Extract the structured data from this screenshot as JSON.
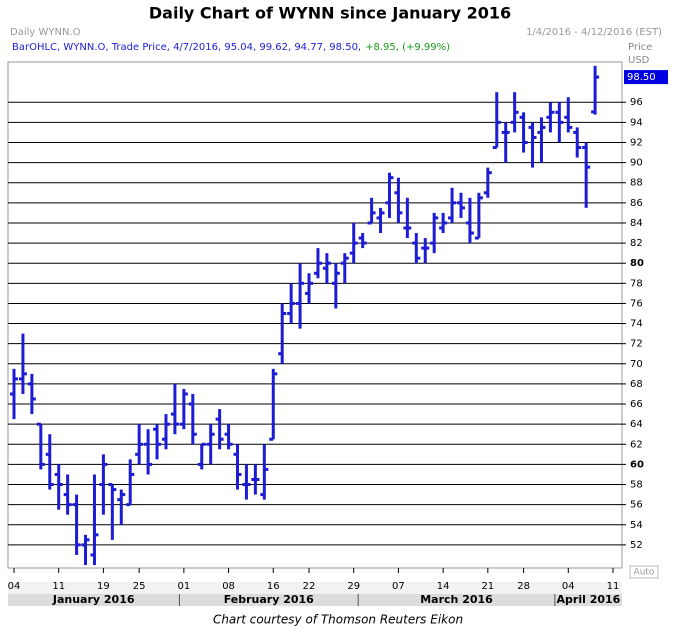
{
  "chart_data": {
    "type": "ohlc",
    "title": "Daily Chart of WYNN since January 2016",
    "instrument_label": "Daily WYNN.O",
    "date_range": "1/4/2016 - 4/12/2016 (EST)",
    "header_text": "BarOHLC, WYNN.O, Trade Price, 4/7/2016, 95.04, 99.62, 94.77, 98.50,",
    "header_change": "+8.95, (+9.99%)",
    "price_label": "Price",
    "currency_label": "USD",
    "last_price_label": "98.50",
    "scale_mode": "Auto",
    "months": [
      "January 2016",
      "February 2016",
      "March 2016",
      "April 2016"
    ],
    "caption": "Chart courtesy of Thomson Reuters Eikon",
    "color": "#1c1cd6",
    "categories": [
      "04",
      null,
      null,
      null,
      null,
      "11",
      null,
      null,
      null,
      null,
      "19",
      null,
      null,
      null,
      "25",
      null,
      null,
      null,
      null,
      "01",
      null,
      null,
      null,
      null,
      "08",
      null,
      null,
      null,
      null,
      "16",
      null,
      null,
      null,
      "22",
      null,
      null,
      null,
      null,
      "29",
      null,
      null,
      null,
      null,
      "07",
      null,
      null,
      null,
      null,
      "14",
      null,
      null,
      null,
      null,
      "21",
      null,
      null,
      null,
      "28",
      null,
      null,
      null,
      null,
      "04",
      null,
      null,
      null,
      null,
      "11"
    ],
    "open": [
      67,
      68.5,
      68,
      64,
      61,
      59,
      57,
      56,
      52,
      51,
      58,
      58,
      56.5,
      56,
      61,
      62,
      63.5,
      62.5,
      65,
      64,
      66,
      60,
      62,
      64.5,
      63,
      61,
      58,
      58.5,
      57,
      62.5,
      71,
      75,
      76,
      77,
      79,
      79.5,
      78,
      80,
      81,
      82.5,
      84,
      84.5,
      86,
      87,
      83.5,
      82,
      81.5,
      82,
      83.5,
      84.5,
      86,
      84,
      82.5,
      87,
      91.5,
      93,
      94,
      94.5,
      93.5,
      93,
      94.5,
      95,
      94.5,
      93,
      91.5,
      95.04,
      null,
      null
    ],
    "high": [
      69.5,
      73,
      69,
      64,
      63,
      60,
      59,
      57,
      53,
      59,
      61,
      58,
      57.5,
      60.5,
      64,
      63.5,
      64,
      65,
      68,
      67.5,
      67,
      62,
      64,
      65.5,
      64,
      62,
      60,
      60,
      62,
      69.5,
      76,
      78,
      80,
      79,
      81.5,
      81,
      80,
      81,
      84,
      83,
      86.5,
      85.5,
      89,
      88.5,
      86.5,
      83,
      82.5,
      85,
      85,
      87.5,
      87,
      86.5,
      87,
      89.5,
      97,
      94,
      97,
      95,
      94,
      94.5,
      96,
      96,
      96.5,
      93.5,
      92,
      99.62,
      null,
      null
    ],
    "low": [
      64.5,
      67,
      65,
      59.5,
      57.5,
      55.5,
      55,
      51,
      50,
      50,
      55,
      52.5,
      54,
      56,
      60,
      59,
      60.5,
      61.5,
      63,
      63.5,
      62,
      59.5,
      60,
      61.5,
      61.5,
      57.5,
      56.5,
      57,
      56.5,
      62.5,
      70,
      74,
      73.5,
      76,
      78.5,
      78,
      75.5,
      78,
      80,
      81.5,
      84,
      83,
      84.5,
      84,
      82.5,
      80,
      80,
      81,
      83,
      84,
      84.5,
      82,
      82.5,
      86.5,
      91.5,
      90,
      93,
      91,
      89.5,
      90,
      93,
      92,
      93,
      90.5,
      85.5,
      94.77,
      null,
      null
    ],
    "close": [
      68.5,
      69,
      66.5,
      60,
      58,
      58,
      56,
      52,
      52.5,
      53,
      60,
      57.5,
      57,
      59,
      62,
      60,
      62,
      64,
      64,
      67,
      63,
      62,
      63,
      62.5,
      62,
      59,
      58,
      58.5,
      59.5,
      69,
      75,
      76,
      78,
      78,
      80,
      80,
      79,
      80.5,
      82,
      82,
      85,
      85,
      88.5,
      85,
      83.5,
      80.5,
      81.5,
      84.5,
      84,
      86,
      85.5,
      83,
      86.5,
      89,
      94,
      93,
      95,
      92,
      92.5,
      93.5,
      95,
      94,
      93.5,
      91.5,
      89.55,
      98.5,
      null,
      null
    ],
    "ylim": [
      50,
      100
    ],
    "yticks": [
      52,
      54,
      56,
      58,
      60,
      62,
      64,
      66,
      68,
      70,
      72,
      74,
      76,
      78,
      80,
      82,
      84,
      86,
      88,
      90,
      92,
      94,
      96
    ],
    "grid": true
  }
}
